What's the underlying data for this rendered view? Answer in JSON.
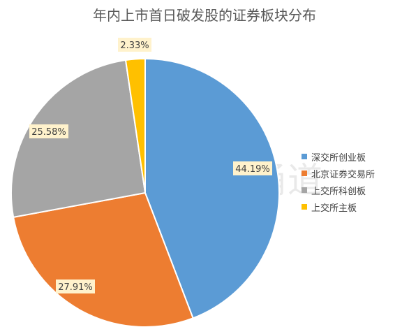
{
  "watermark": {
    "text": "财联社股市涌道",
    "logo_letter": "C"
  },
  "chart_data": {
    "type": "pie",
    "title": "年内上市首日破发股的证券板块分布",
    "legend_position": "right",
    "slices": [
      {
        "label": "深交所创业板",
        "value": 44.19,
        "display": "44.19%",
        "color": "#5b9bd5"
      },
      {
        "label": "北京证券交易所",
        "value": 27.91,
        "display": "27.91%",
        "color": "#ed7d31"
      },
      {
        "label": "上交所科创板",
        "value": 25.58,
        "display": "25.58%",
        "color": "#a5a5a5"
      },
      {
        "label": "上交所主板",
        "value": 2.33,
        "display": "2.33%",
        "color": "#ffc000"
      }
    ]
  }
}
